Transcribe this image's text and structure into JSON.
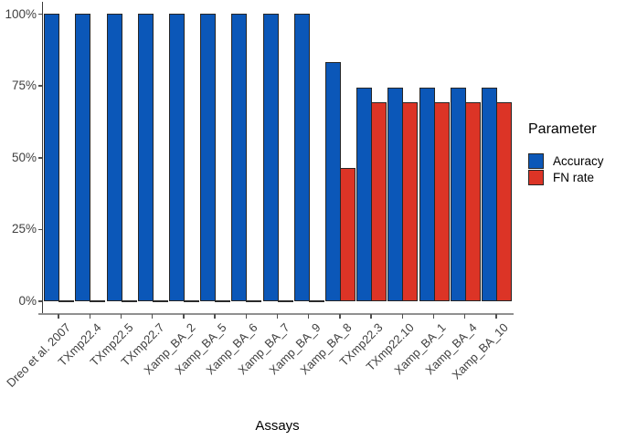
{
  "chart_data": {
    "type": "bar",
    "title": "",
    "xlabel": "Assays",
    "ylabel": "",
    "legend_title": "Parameter",
    "legend_position": "right",
    "grid": false,
    "categories": [
      "Dreo et al. 2007",
      "TXmp22.4",
      "TXmp22.5",
      "TXmp22.7",
      "Xamp_BA_2",
      "Xamp_BA_5",
      "Xamp_BA_6",
      "Xamp_BA_7",
      "Xamp_BA_9",
      "Xamp_BA_8",
      "TXmp22.3",
      "TXmp22.10",
      "Xamp_BA_1",
      "Xamp_BA_4",
      "Xamp_BA_10"
    ],
    "series": [
      {
        "name": "Accuracy",
        "color": "#0b57b8",
        "values": [
          100,
          100,
          100,
          100,
          100,
          100,
          100,
          100,
          100,
          83,
          74,
          74,
          74,
          74,
          74
        ]
      },
      {
        "name": "FN rate",
        "color": "#dc3426",
        "values": [
          0,
          0,
          0,
          0,
          0,
          0,
          0,
          0,
          0,
          46,
          69,
          69,
          69,
          69,
          69
        ]
      }
    ],
    "yticks": [
      {
        "value": 0,
        "label": "0%"
      },
      {
        "value": 25,
        "label": "25%"
      },
      {
        "value": 50,
        "label": "50%"
      },
      {
        "value": 75,
        "label": "75%"
      },
      {
        "value": 100,
        "label": "100%"
      }
    ],
    "ylim": [
      0,
      100
    ],
    "bar_outline_color": "#262626"
  }
}
